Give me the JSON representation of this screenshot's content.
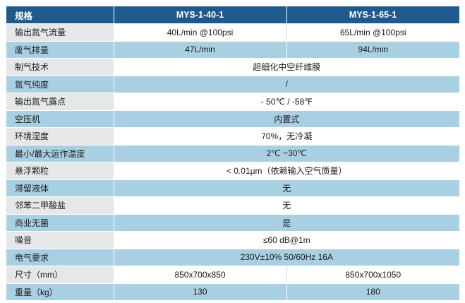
{
  "header": {
    "label": "规格",
    "model_a": "MYS-1-40-1",
    "model_b": "MYS-1-65-1"
  },
  "rows": [
    {
      "label": "输出氮气流量",
      "a": "40L/min @100psi",
      "b": "65L/min @100psi"
    },
    {
      "label": "废气排量",
      "a": "47L/min",
      "b": "94L/min"
    },
    {
      "label": "制气技术",
      "span": "超细化中空纤维膜"
    },
    {
      "label": "氮气纯度",
      "span": "/"
    },
    {
      "label": "输出氮气露点",
      "span": "- 50℃ / -58℉"
    },
    {
      "label": "空压机",
      "span": "内置式"
    },
    {
      "label": "环境湿度",
      "span": "70%，无冷凝"
    },
    {
      "label": "最小/最大运作温度",
      "span": "2℃ ~30℃"
    },
    {
      "label": "悬浮颗粒",
      "span": "< 0.01μm（依赖输入空气质量）"
    },
    {
      "label": "滞留液体",
      "span": "无"
    },
    {
      "label": "邻苯二甲酸盐",
      "span": "无"
    },
    {
      "label": "商业无菌",
      "span": "是"
    },
    {
      "label": "噪音",
      "span": "≤60 dB@1m"
    },
    {
      "label": "电气要求",
      "span": "230V±10%  50/60Hz 16A"
    },
    {
      "label": "尺寸（mm）",
      "a": "850x700x850",
      "b": "850x700x1050"
    },
    {
      "label": "重量（kg）",
      "a": "130",
      "b": "180"
    }
  ]
}
